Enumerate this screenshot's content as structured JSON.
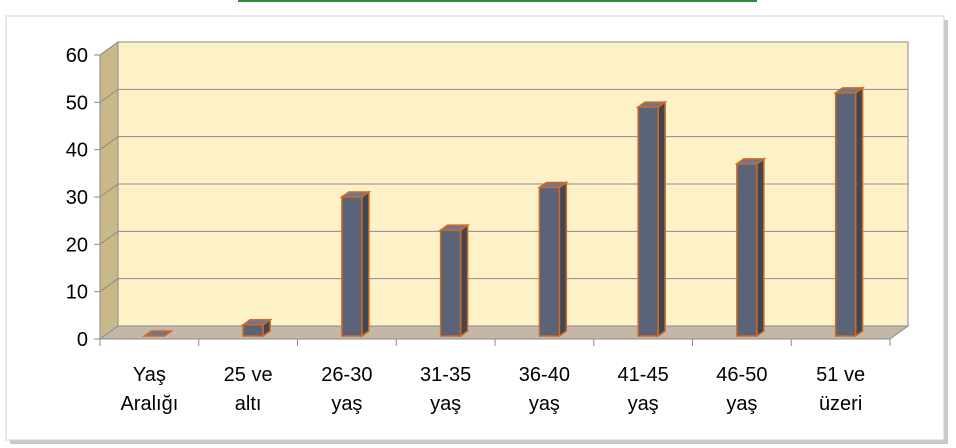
{
  "chart_data": {
    "type": "bar",
    "categories": [
      [
        "Yaş",
        "Aralığı"
      ],
      [
        "25 ve",
        "altı"
      ],
      [
        "26-30",
        "yaş"
      ],
      [
        "31-35",
        "yaş"
      ],
      [
        "36-40",
        "yaş"
      ],
      [
        "41-45",
        "yaş"
      ],
      [
        "46-50",
        "yaş"
      ],
      [
        "51 ve",
        "üzeri"
      ]
    ],
    "values": [
      0,
      3,
      30,
      23,
      32,
      49,
      37,
      52
    ],
    "yticks": [
      "0",
      "10",
      "20",
      "30",
      "40",
      "50",
      "60"
    ],
    "ylim": [
      0,
      60
    ],
    "grid": true,
    "three_d": true,
    "colors": {
      "bar_front": "#5a6378",
      "bar_side": "#3f4656",
      "bar_top": "#6d7790",
      "bar_edge": "#d2691e",
      "back_wall": "#fdf1c7",
      "side_wall": "#c9b98a",
      "floor": "#c4b7a8",
      "frame_border": "#d0d0d0",
      "shadow": "#9a9a9a",
      "top_strip": "#2e8b3a"
    }
  }
}
